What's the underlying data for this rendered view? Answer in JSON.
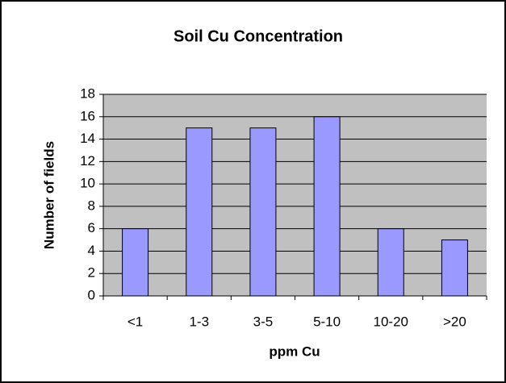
{
  "chart_data": {
    "type": "bar",
    "title": "Soil Cu Concentration",
    "x_label": "ppm Cu",
    "y_label": "Number of fields",
    "categories": [
      "<1",
      "1-3",
      "3-5",
      "5-10",
      "10-20",
      ">20"
    ],
    "values": [
      6,
      15,
      15,
      16,
      6,
      5
    ],
    "color": "#9999ff",
    "ylim": [
      0,
      18
    ],
    "yticks": [
      0,
      2,
      4,
      6,
      8,
      10,
      12,
      14,
      16,
      18
    ],
    "grid": true
  }
}
